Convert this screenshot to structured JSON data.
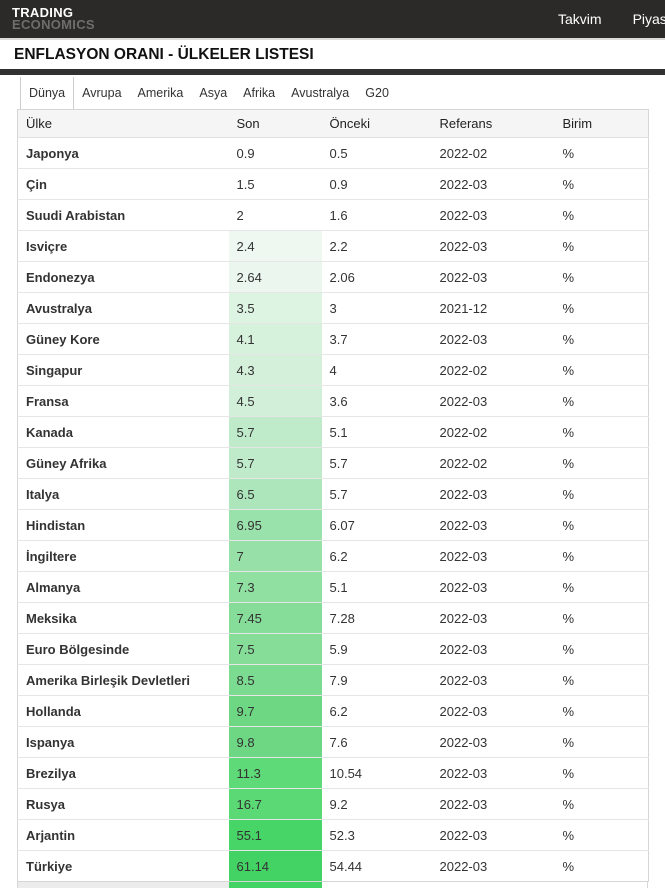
{
  "navbar": {
    "logo_line1": "TRADING",
    "logo_line2": "ECONOMICS",
    "items": [
      {
        "id": "takvim",
        "label": "Takvim"
      },
      {
        "id": "piyasalar",
        "label": "Piyas"
      }
    ]
  },
  "page_title": "ENFLASYON ORANI - ÜLKELER LISTESI",
  "tabs": [
    {
      "id": "dunya",
      "label": "Dünya",
      "active": true
    },
    {
      "id": "avrupa",
      "label": "Avrupa",
      "active": false
    },
    {
      "id": "amerika",
      "label": "Amerika",
      "active": false
    },
    {
      "id": "asya",
      "label": "Asya",
      "active": false
    },
    {
      "id": "afrika",
      "label": "Afrika",
      "active": false
    },
    {
      "id": "avustralya",
      "label": "Avustralya",
      "active": false
    },
    {
      "id": "g20",
      "label": "G20",
      "active": false
    }
  ],
  "table": {
    "columns": [
      "Ülke",
      "Son",
      "Önceki",
      "Referans",
      "Birim"
    ],
    "rows": [
      {
        "country": "Japonya",
        "son": "0.9",
        "onceki": "0.5",
        "referans": "2022-02",
        "birim": "%",
        "son_bg": ""
      },
      {
        "country": "Çin",
        "son": "1.5",
        "onceki": "0.9",
        "referans": "2022-03",
        "birim": "%",
        "son_bg": ""
      },
      {
        "country": "Suudi Arabistan",
        "son": "2",
        "onceki": "1.6",
        "referans": "2022-03",
        "birim": "%",
        "son_bg": ""
      },
      {
        "country": "Isviçre",
        "son": "2.4",
        "onceki": "2.2",
        "referans": "2022-03",
        "birim": "%",
        "son_bg": "#eef8f1"
      },
      {
        "country": "Endonezya",
        "son": "2.64",
        "onceki": "2.06",
        "referans": "2022-03",
        "birim": "%",
        "son_bg": "#ebf7ee"
      },
      {
        "country": "Avustralya",
        "son": "3.5",
        "onceki": "3",
        "referans": "2021-12",
        "birim": "%",
        "son_bg": "#def4e3"
      },
      {
        "country": "Güney Kore",
        "son": "4.1",
        "onceki": "3.7",
        "referans": "2022-03",
        "birim": "%",
        "son_bg": "#d6f1dc"
      },
      {
        "country": "Singapur",
        "son": "4.3",
        "onceki": "4",
        "referans": "2022-02",
        "birim": "%",
        "son_bg": "#d4f0da"
      },
      {
        "country": "Fransa",
        "son": "4.5",
        "onceki": "3.6",
        "referans": "2022-03",
        "birim": "%",
        "son_bg": "#d2f0d9"
      },
      {
        "country": "Kanada",
        "son": "5.7",
        "onceki": "5.1",
        "referans": "2022-02",
        "birim": "%",
        "son_bg": "#c0ebca"
      },
      {
        "country": "Güney Afrika",
        "son": "5.7",
        "onceki": "5.7",
        "referans": "2022-02",
        "birim": "%",
        "son_bg": "#c0ebca"
      },
      {
        "country": "Italya",
        "son": "6.5",
        "onceki": "5.7",
        "referans": "2022-03",
        "birim": "%",
        "son_bg": "#ade6bb"
      },
      {
        "country": "Hindistan",
        "son": "6.95",
        "onceki": "6.07",
        "referans": "2022-03",
        "birim": "%",
        "son_bg": "#9ae2ab"
      },
      {
        "country": "İngiltere",
        "son": "7",
        "onceki": "6.2",
        "referans": "2022-03",
        "birim": "%",
        "son_bg": "#97e1a8"
      },
      {
        "country": "Almanya",
        "son": "7.3",
        "onceki": "5.1",
        "referans": "2022-03",
        "birim": "%",
        "son_bg": "#90e0a2"
      },
      {
        "country": "Meksika",
        "son": "7.45",
        "onceki": "7.28",
        "referans": "2022-03",
        "birim": "%",
        "son_bg": "#86dd99"
      },
      {
        "country": "Euro Bölgesinde",
        "son": "7.5",
        "onceki": "5.9",
        "referans": "2022-03",
        "birim": "%",
        "son_bg": "#85dd98"
      },
      {
        "country": "Amerika Birleşik Devletleri",
        "son": "8.5",
        "onceki": "7.9",
        "referans": "2022-03",
        "birim": "%",
        "son_bg": "#7bdb90"
      },
      {
        "country": "Hollanda",
        "son": "9.7",
        "onceki": "6.2",
        "referans": "2022-03",
        "birim": "%",
        "son_bg": "#6ed784"
      },
      {
        "country": "Ispanya",
        "son": "9.8",
        "onceki": "7.6",
        "referans": "2022-03",
        "birim": "%",
        "son_bg": "#6dd783"
      },
      {
        "country": "Brezilya",
        "son": "11.3",
        "onceki": "10.54",
        "referans": "2022-03",
        "birim": "%",
        "son_bg": "#5fda79"
      },
      {
        "country": "Rusya",
        "son": "16.7",
        "onceki": "9.2",
        "referans": "2022-03",
        "birim": "%",
        "son_bg": "#5ad975"
      },
      {
        "country": "Arjantin",
        "son": "55.1",
        "onceki": "52.3",
        "referans": "2022-03",
        "birim": "%",
        "son_bg": "#47d567"
      },
      {
        "country": "Türkiye",
        "son": "61.14",
        "onceki": "54.44",
        "referans": "2022-03",
        "birim": "%",
        "son_bg": "#43d364"
      }
    ]
  },
  "partial_next_row": {
    "left_bg": "#ececec",
    "son_bg": "#43d364"
  },
  "colors": {
    "navbar_bg": "#2b2a29",
    "divider_bar": "#313131",
    "heat_green_min": "#eef8f1",
    "heat_green_max": "#43d364"
  }
}
